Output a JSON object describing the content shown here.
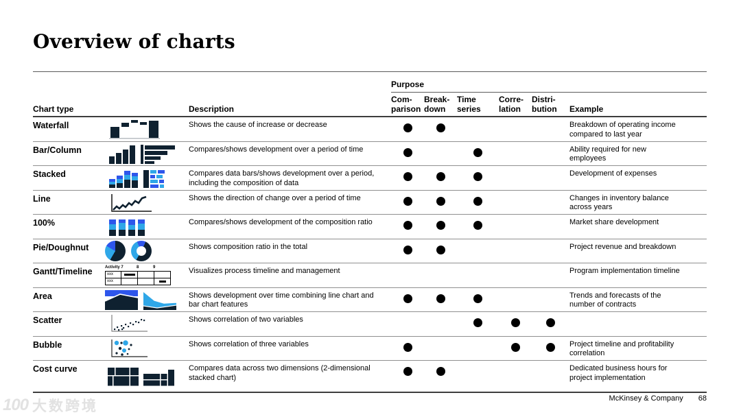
{
  "slide": {
    "title": "Overview of charts",
    "footer": {
      "company": "McKinsey & Company",
      "page_number": "68"
    },
    "watermark": {
      "logo_text": "100",
      "brand_text": "大数跨境"
    }
  },
  "colors": {
    "navy": "#0f2130",
    "lightblue": "#2fa7e8",
    "royal": "#2e56eb",
    "dot": "#000000"
  },
  "table": {
    "headers": {
      "chart_type": "Chart type",
      "description": "Description",
      "purpose_group": "Purpose",
      "purpose_columns": [
        "Com-\nparison",
        "Break-\ndown",
        "Time\nseries",
        "Corre-\nlation",
        "Distri-\nbution"
      ],
      "example": "Example"
    },
    "gantt_icon": {
      "header": [
        "Activity 7",
        "8",
        "9"
      ],
      "row_labels": [
        "xxx",
        "xxx"
      ]
    },
    "rows": [
      {
        "chart_type": "Waterfall",
        "icon": "waterfall-chart-icon",
        "icon_key": "waterfall",
        "description": "Shows the cause of increase or decrease",
        "purpose": {
          "comparison": true,
          "breakdown": true,
          "time_series": false,
          "correlation": false,
          "distribution": false
        },
        "example": "Breakdown of operating income compared to last year"
      },
      {
        "chart_type": "Bar/Column",
        "icon": "bar-column-chart-icon",
        "icon_key": "barcolumn",
        "description": "Compares/shows development over a period of time",
        "purpose": {
          "comparison": true,
          "breakdown": false,
          "time_series": true,
          "correlation": false,
          "distribution": false
        },
        "example": "Ability required for new employees"
      },
      {
        "chart_type": "Stacked",
        "icon": "stacked-chart-icon",
        "icon_key": "stacked",
        "description": "Compares data bars/shows development over a period, including the composition of data",
        "purpose": {
          "comparison": true,
          "breakdown": true,
          "time_series": true,
          "correlation": false,
          "distribution": false
        },
        "example": "Development of expenses"
      },
      {
        "chart_type": "Line",
        "icon": "line-chart-icon",
        "icon_key": "line",
        "description": "Shows the direction of change over a period of time",
        "purpose": {
          "comparison": true,
          "breakdown": true,
          "time_series": true,
          "correlation": false,
          "distribution": false
        },
        "example": "Changes in inventory balance across years"
      },
      {
        "chart_type": "100%",
        "icon": "stacked-100-chart-icon",
        "icon_key": "pct100",
        "description": "Compares/shows development of the composition ratio",
        "purpose": {
          "comparison": true,
          "breakdown": true,
          "time_series": true,
          "correlation": false,
          "distribution": false
        },
        "example": "Market share development"
      },
      {
        "chart_type": "Pie/Doughnut",
        "icon": "pie-doughnut-chart-icon",
        "icon_key": "pie",
        "description": "Shows composition ratio in the total",
        "purpose": {
          "comparison": true,
          "breakdown": true,
          "time_series": false,
          "correlation": false,
          "distribution": false
        },
        "example": "Project revenue and breakdown"
      },
      {
        "chart_type": "Gantt/Timeline",
        "icon": "gantt-timeline-chart-icon",
        "icon_key": "gantt",
        "description": "Visualizes process timeline and management",
        "purpose": {
          "comparison": false,
          "breakdown": false,
          "time_series": false,
          "correlation": false,
          "distribution": false
        },
        "example": "Program implementation timeline"
      },
      {
        "chart_type": "Area",
        "icon": "area-chart-icon",
        "icon_key": "area",
        "description": "Shows development over time combining line chart and bar chart features",
        "purpose": {
          "comparison": true,
          "breakdown": true,
          "time_series": true,
          "correlation": false,
          "distribution": false
        },
        "example": "Trends and forecasts of the number of contracts"
      },
      {
        "chart_type": "Scatter",
        "icon": "scatter-chart-icon",
        "icon_key": "scatter",
        "description": "Shows correlation of two variables",
        "purpose": {
          "comparison": false,
          "breakdown": false,
          "time_series": true,
          "correlation": true,
          "distribution": true
        },
        "example": ""
      },
      {
        "chart_type": "Bubble",
        "icon": "bubble-chart-icon",
        "icon_key": "bubble",
        "description": "Shows correlation of three variables",
        "purpose": {
          "comparison": true,
          "breakdown": false,
          "time_series": false,
          "correlation": true,
          "distribution": true
        },
        "example": "Project timeline and profitability correlation"
      },
      {
        "chart_type": "Cost curve",
        "icon": "cost-curve-chart-icon",
        "icon_key": "costcurve",
        "description": "Compares data across two dimensions (2-dimensional stacked chart)",
        "purpose": {
          "comparison": true,
          "breakdown": true,
          "time_series": false,
          "correlation": false,
          "distribution": false
        },
        "example": "Dedicated business hours for project implementation"
      }
    ]
  }
}
